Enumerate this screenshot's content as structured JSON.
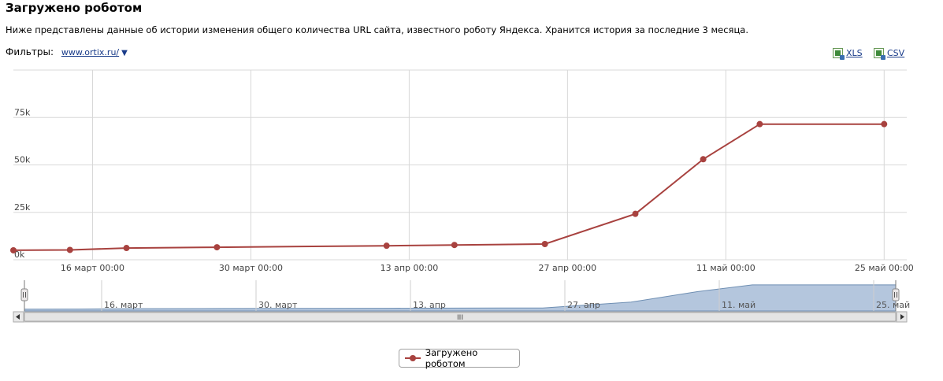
{
  "page": {
    "title": "Загружено роботом",
    "description": "Ниже представлены данные об истории изменения общего количества URL сайта, известного роботу Яндекса. Хранится история за последние 3 месяца.",
    "filters_label": "Фильтры:",
    "filter_site": "www.ortix.ru/",
    "export_xls": "XLS",
    "export_csv": "CSV"
  },
  "colors": {
    "series": "#a8423f",
    "navigator_fill": "#b4c6dd",
    "navigator_line": "#6f8fb3",
    "grid": "#d8d8d8"
  },
  "chart_data": {
    "type": "line",
    "title": "",
    "xlabel": "",
    "ylabel": "",
    "ylim": [
      0,
      100000
    ],
    "xlim": [
      "2013-03-09",
      "2013-05-27"
    ],
    "y_ticks": [
      "0k",
      "25k",
      "50k",
      "75k"
    ],
    "x_ticks": [
      {
        "label": "16 март 00:00",
        "date": "2013-03-16"
      },
      {
        "label": "30 март 00:00",
        "date": "2013-03-30"
      },
      {
        "label": "13 апр 00:00",
        "date": "2013-04-13"
      },
      {
        "label": "27 апр 00:00",
        "date": "2013-04-27"
      },
      {
        "label": "11 май 00:00",
        "date": "2013-05-11"
      },
      {
        "label": "25 май 00:00",
        "date": "2013-05-25"
      }
    ],
    "navigator_ticks": [
      {
        "label": "16. март",
        "date": "2013-03-16"
      },
      {
        "label": "30. март",
        "date": "2013-03-30"
      },
      {
        "label": "13. апр",
        "date": "2013-04-13"
      },
      {
        "label": "27. апр",
        "date": "2013-04-27"
      },
      {
        "label": "11. май",
        "date": "2013-05-11"
      },
      {
        "label": "25. май",
        "date": "2013-05-25"
      }
    ],
    "series": [
      {
        "name": "Загружено роботом",
        "points": [
          {
            "x": "2013-03-08",
            "y": 5000
          },
          {
            "x": "2013-03-14",
            "y": 5200
          },
          {
            "x": "2013-03-19",
            "y": 6200
          },
          {
            "x": "2013-03-27",
            "y": 6600
          },
          {
            "x": "2013-04-11",
            "y": 7400
          },
          {
            "x": "2013-04-17",
            "y": 7800
          },
          {
            "x": "2013-04-25",
            "y": 8300
          },
          {
            "x": "2013-05-03",
            "y": 24200
          },
          {
            "x": "2013-05-09",
            "y": 53000
          },
          {
            "x": "2013-05-14",
            "y": 71500
          },
          {
            "x": "2013-05-25",
            "y": 71500
          }
        ]
      }
    ],
    "legend": "bottom-center",
    "grid": true
  }
}
